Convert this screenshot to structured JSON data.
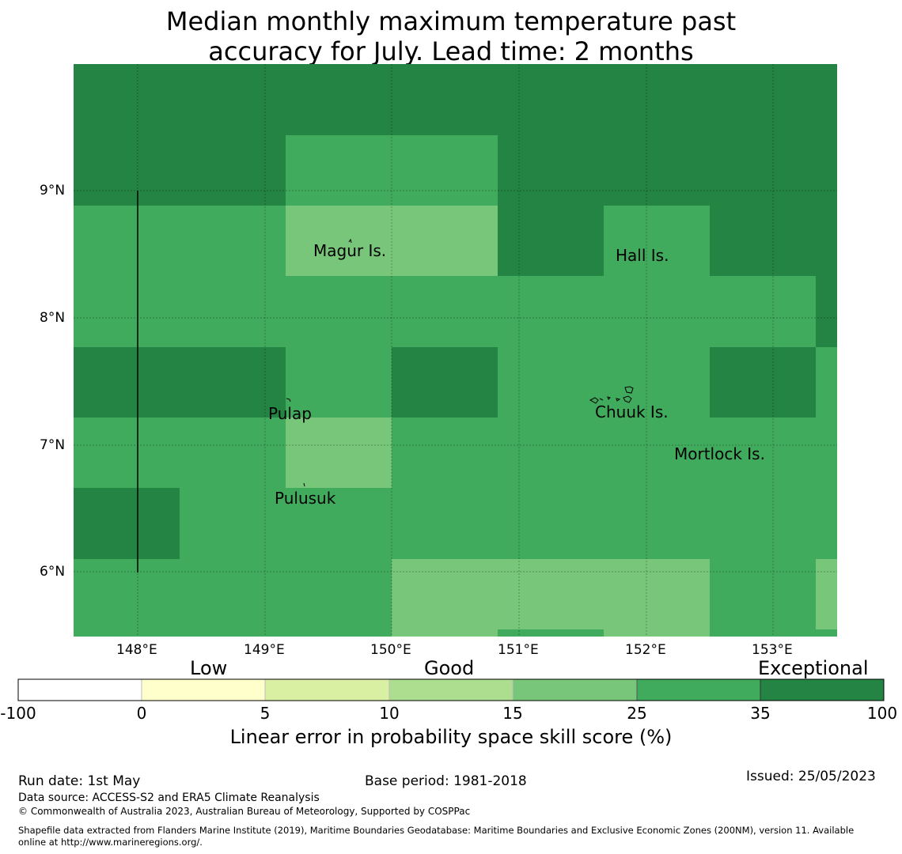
{
  "title_line1": "Median monthly maximum temperature past",
  "title_line2": "accuracy for July. Lead time: 2 months",
  "map": {
    "lon_ticks": [
      "148°E",
      "149°E",
      "150°E",
      "151°E",
      "152°E",
      "153°E"
    ],
    "lat_ticks": [
      "9°N",
      "8°N",
      "7°N",
      "6°N"
    ],
    "islands": [
      {
        "name": "Magur Is."
      },
      {
        "name": "Hall Is."
      },
      {
        "name": "Pulap"
      },
      {
        "name": "Chuuk Is."
      },
      {
        "name": "Mortlock Is."
      },
      {
        "name": "Pulusuk"
      }
    ],
    "colors": {
      "exceptional": "#238443",
      "high": "#41ab5d",
      "mid": "#78c679"
    }
  },
  "colorbar": {
    "categories": [
      "Low",
      "Good",
      "Exceptional"
    ],
    "ticks": [
      "-100",
      "0",
      "5",
      "10",
      "15",
      "25",
      "35",
      "100"
    ],
    "colors": [
      "#ffffff",
      "#ffffcc",
      "#d9f0a3",
      "#addd8e",
      "#78c679",
      "#41ab5d",
      "#238443"
    ],
    "label": "Linear error in probability space skill score (%)"
  },
  "footer": {
    "run_date": "Run date: 1st May",
    "base_period": "Base period: 1981-2018",
    "issued": "Issued: 25/05/2023",
    "data_source": "Data source: ACCESS-S2 and ERA5 Climate Reanalysis",
    "copyright": "© Commonwealth of Australia 2023, Australian Bureau of Meteorology, Supported by COSPPac",
    "shapefile_line1": "Shapefile data extracted from Flanders Marine Institute (2019), Maritime Boundaries Geodatabase: Maritime Boundaries and Exclusive Economic Zones (200NM), version 11. Available",
    "shapefile_line2": "online at http://www.marineregions.org/."
  }
}
